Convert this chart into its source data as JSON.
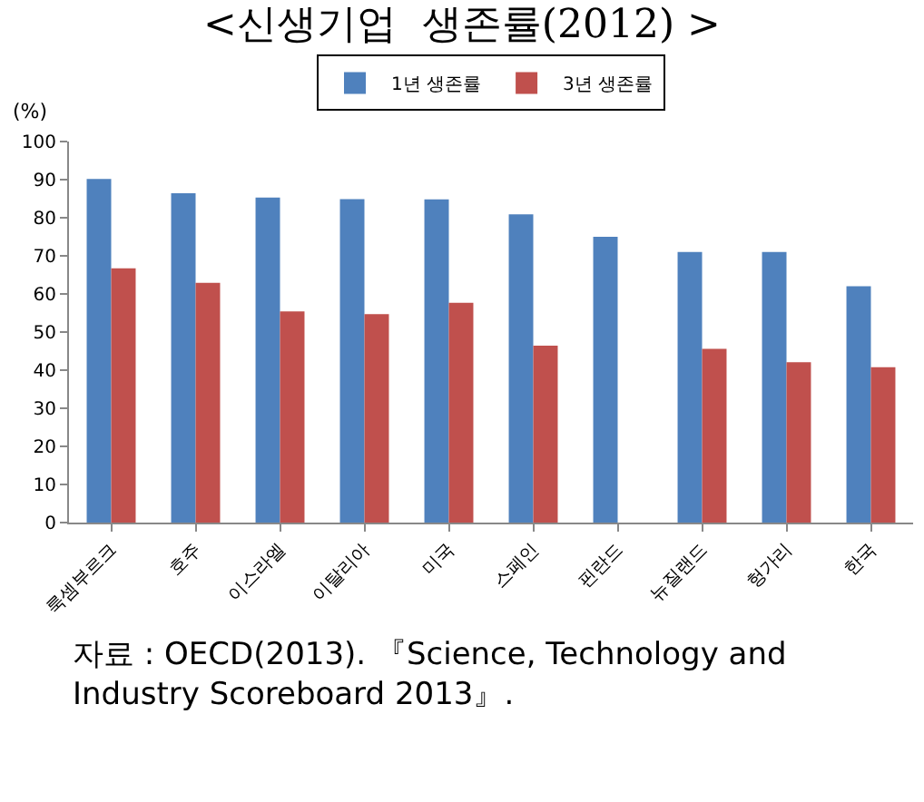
{
  "chart_data": {
    "type": "bar",
    "title": "<신생기업  생존률(2012) >",
    "ylabel": "(%)",
    "categories": [
      "룩셈부르크",
      "호주",
      "이스라엘",
      "이탈리아",
      "미국",
      "스페인",
      "핀란드",
      "뉴질랜드",
      "헝가리",
      "한국"
    ],
    "series": [
      {
        "name": "1년 생존률",
        "color": "#4f81bd",
        "values": [
          90.2,
          86.4,
          85.3,
          84.9,
          84.8,
          80.9,
          75,
          71,
          71,
          62
        ]
      },
      {
        "name": "3년 생존률",
        "color": "#c0504d",
        "values": [
          66.7,
          62.9,
          55.4,
          54.7,
          57.7,
          46.4,
          null,
          45.6,
          42.1,
          40.8
        ]
      }
    ],
    "ylim": [
      0,
      100
    ],
    "yticks": [
      0,
      10,
      20,
      30,
      40,
      50,
      60,
      70,
      80,
      90,
      100
    ],
    "grid": false,
    "legend": "top",
    "annotations": [
      "자료 : OECD(2013). 『Science, Technology and Industry Scoreboard 2013』."
    ]
  }
}
